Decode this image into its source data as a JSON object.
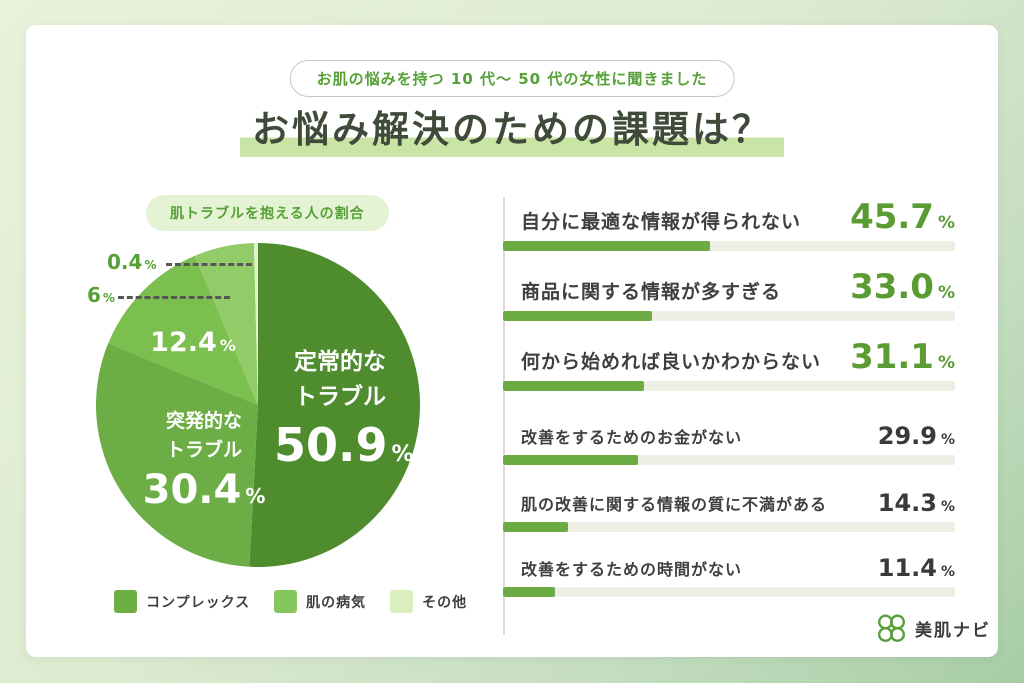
{
  "units": {
    "percent": "%"
  },
  "palette": {
    "frame_gradient": [
      "#e9f1da",
      "#ddebd1",
      "#a7cda5"
    ],
    "accent_green": "#5a9e3c",
    "badge_text": "#55a037",
    "title_color": "#3f4a3b",
    "title_highlight": "#c8e5a5",
    "bar_fill": "#6cab43",
    "bar_track": "#efeee5",
    "pct_green": "#5b9b33",
    "text_dark": "#3a3a3a"
  },
  "header": {
    "badge": "お肌の悩みを持つ 10 代〜 50 代の女性に聞きました",
    "title": "お悩み解決のための課題は？"
  },
  "pie": {
    "caption": "肌トラブルを抱える人の割合",
    "legend": [
      {
        "label": "コンプレックス",
        "color": "#6cb043"
      },
      {
        "label": "肌の病気",
        "color": "#84c75c"
      },
      {
        "label": "その他",
        "color": "#d9f0bd"
      }
    ]
  },
  "bars": {
    "rows": [
      {
        "label": "自分に最適な情報が得られない",
        "display": "45.7",
        "value": 45.7,
        "emphasis": true
      },
      {
        "label": "商品に関する情報が多すぎる",
        "display": "33.0",
        "value": 33.0,
        "emphasis": true
      },
      {
        "label": "何から始めれば良いかわからない",
        "display": "31.1",
        "value": 31.1,
        "emphasis": true
      },
      {
        "label": "改善をするためのお金がない",
        "display": "29.9",
        "value": 29.9,
        "emphasis": false
      },
      {
        "label": "肌の改善に関する情報の質に不満がある",
        "display": "14.3",
        "value": 14.3,
        "emphasis": false
      },
      {
        "label": "改善をするための時間がない",
        "display": "11.4",
        "value": 11.4,
        "emphasis": false
      }
    ]
  },
  "logo": {
    "text": "美肌ナビ"
  },
  "chart_data": [
    {
      "type": "pie",
      "title": "肌トラブルを抱える人の割合",
      "start_angle_deg": 0,
      "direction": "clockwise",
      "legend_position": "bottom",
      "slices": [
        {
          "label": "定常的なトラブル",
          "display": "50.9",
          "value": 50.9,
          "color": "#4e8c2e"
        },
        {
          "label": "突発的なトラブル",
          "display": "30.4",
          "value": 30.4,
          "color": "#6cae45"
        },
        {
          "label": "コンプレックス",
          "display": "12.4",
          "value": 12.4,
          "color": "#7bbf4f"
        },
        {
          "label": "肌の病気",
          "display": "6",
          "value": 6,
          "color": "#92cc68"
        },
        {
          "label": "その他",
          "display": "0.4",
          "value": 0.4,
          "color": "#e1f3d0"
        }
      ]
    },
    {
      "type": "bar",
      "orientation": "horizontal",
      "title": "お悩み解決のための課題は？",
      "categories": [
        "自分に最適な情報が得られない",
        "商品に関する情報が多すぎる",
        "何から始めれば良いかわからない",
        "改善をするためのお金がない",
        "肌の改善に関する情報の質に不満がある",
        "改善をするための時間がない"
      ],
      "values": [
        45.7,
        33.0,
        31.1,
        29.9,
        14.3,
        11.4
      ],
      "xlim": [
        0,
        100
      ],
      "unit": "%",
      "grid": false
    }
  ]
}
